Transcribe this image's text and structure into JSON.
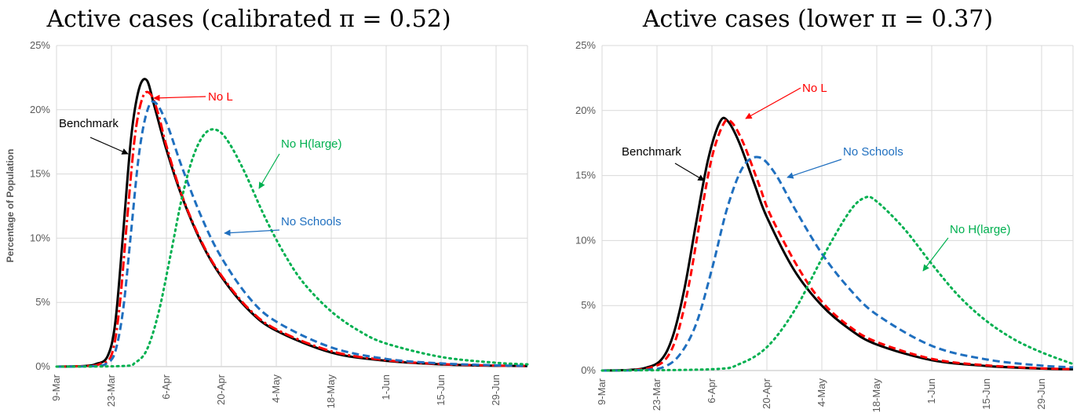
{
  "chart_data": [
    {
      "type": "line",
      "title": "Active cases (calibrated π = 0.52)",
      "xlabel": "",
      "ylabel": "Percentage of Population",
      "ylim": [
        0,
        25
      ],
      "y_ticks": [
        "0%",
        "5%",
        "10%",
        "15%",
        "20%",
        "25%"
      ],
      "x_ticks": [
        "9-Mar",
        "23-Mar",
        "6-Apr",
        "20-Apr",
        "4-May",
        "18-May",
        "1-Jun",
        "15-Jun",
        "29-Jun"
      ],
      "x_range": [
        "9-Mar",
        "7-Jul"
      ],
      "grid": true,
      "series": [
        {
          "name": "Benchmark",
          "color": "#000000",
          "style": "solid",
          "points": [
            [
              "9-Mar",
              0
            ],
            [
              "16-Mar",
              0.05
            ],
            [
              "19-Mar",
              0.2
            ],
            [
              "22-Mar",
              0.8
            ],
            [
              "24-Mar",
              3.5
            ],
            [
              "26-Mar",
              10.5
            ],
            [
              "28-Mar",
              17.8
            ],
            [
              "30-Mar",
              21.6
            ],
            [
              "1-Apr",
              22.3
            ],
            [
              "3-Apr",
              20.2
            ],
            [
              "6-Apr",
              16.9
            ],
            [
              "10-Apr",
              13.2
            ],
            [
              "15-Apr",
              9.6
            ],
            [
              "20-Apr",
              7.0
            ],
            [
              "27-Apr",
              4.4
            ],
            [
              "4-May",
              2.8
            ],
            [
              "18-May",
              1.1
            ],
            [
              "1-Jun",
              0.45
            ],
            [
              "15-Jun",
              0.18
            ],
            [
              "29-Jun",
              0.07
            ],
            [
              "7-Jul",
              0.04
            ]
          ]
        },
        {
          "name": "No L",
          "color": "#ff0000",
          "style": "dashdot",
          "points": [
            [
              "9-Mar",
              0
            ],
            [
              "17-Mar",
              0.05
            ],
            [
              "20-Mar",
              0.2
            ],
            [
              "23-Mar",
              0.9
            ],
            [
              "25-Mar",
              4.5
            ],
            [
              "27-Mar",
              11.5
            ],
            [
              "29-Mar",
              18.0
            ],
            [
              "31-Mar",
              21.0
            ],
            [
              "2-Apr",
              21.2
            ],
            [
              "4-Apr",
              19.6
            ],
            [
              "6-Apr",
              17.2
            ],
            [
              "10-Apr",
              13.3
            ],
            [
              "15-Apr",
              9.7
            ],
            [
              "20-Apr",
              7.1
            ],
            [
              "27-Apr",
              4.5
            ],
            [
              "4-May",
              2.9
            ],
            [
              "18-May",
              1.2
            ],
            [
              "1-Jun",
              0.5
            ],
            [
              "15-Jun",
              0.2
            ],
            [
              "29-Jun",
              0.08
            ],
            [
              "7-Jul",
              0.05
            ]
          ]
        },
        {
          "name": "No Schools",
          "color": "#1f6fbf",
          "style": "dashed",
          "points": [
            [
              "9-Mar",
              0
            ],
            [
              "19-Mar",
              0.05
            ],
            [
              "22-Mar",
              0.3
            ],
            [
              "24-Mar",
              1.2
            ],
            [
              "26-Mar",
              4.5
            ],
            [
              "28-Mar",
              10.5
            ],
            [
              "30-Mar",
              16.5
            ],
            [
              "1-Apr",
              19.8
            ],
            [
              "3-Apr",
              20.6
            ],
            [
              "6-Apr",
              19.0
            ],
            [
              "10-Apr",
              15.5
            ],
            [
              "15-Apr",
              11.6
            ],
            [
              "20-Apr",
              8.5
            ],
            [
              "27-Apr",
              5.4
            ],
            [
              "4-May",
              3.5
            ],
            [
              "18-May",
              1.5
            ],
            [
              "1-Jun",
              0.6
            ],
            [
              "15-Jun",
              0.25
            ],
            [
              "29-Jun",
              0.1
            ],
            [
              "7-Jul",
              0.06
            ]
          ]
        },
        {
          "name": "No H(large)",
          "color": "#00b050",
          "style": "dotted",
          "points": [
            [
              "9-Mar",
              0
            ],
            [
              "26-Mar",
              0.05
            ],
            [
              "29-Mar",
              0.3
            ],
            [
              "1-Apr",
              1.3
            ],
            [
              "4-Apr",
              4.2
            ],
            [
              "7-Apr",
              8.6
            ],
            [
              "10-Apr",
              13.2
            ],
            [
              "13-Apr",
              16.5
            ],
            [
              "16-Apr",
              18.2
            ],
            [
              "19-Apr",
              18.4
            ],
            [
              "22-Apr",
              17.4
            ],
            [
              "26-Apr",
              15.1
            ],
            [
              "1-May",
              11.7
            ],
            [
              "6-May",
              8.8
            ],
            [
              "11-May",
              6.5
            ],
            [
              "18-May",
              4.3
            ],
            [
              "25-May",
              2.8
            ],
            [
              "1-Jun",
              1.8
            ],
            [
              "15-Jun",
              0.75
            ],
            [
              "29-Jun",
              0.3
            ],
            [
              "7-Jul",
              0.18
            ]
          ]
        }
      ],
      "annotations": [
        {
          "text": "Benchmark",
          "color": "#000000"
        },
        {
          "text": "No L",
          "color": "#ff0000"
        },
        {
          "text": "No H(large)",
          "color": "#00b050"
        },
        {
          "text": "No Schools",
          "color": "#1f6fbf"
        }
      ]
    },
    {
      "type": "line",
      "title": "Active cases (lower π = 0.37)",
      "xlabel": "",
      "ylabel": "",
      "ylim": [
        0,
        25
      ],
      "y_ticks": [
        "0%",
        "5%",
        "10%",
        "15%",
        "20%",
        "25%"
      ],
      "x_ticks": [
        "9-Mar",
        "23-Mar",
        "6-Apr",
        "20-Apr",
        "4-May",
        "18-May",
        "1-Jun",
        "15-Jun",
        "29-Jun"
      ],
      "x_range": [
        "9-Mar",
        "7-Jul"
      ],
      "grid": true,
      "series": [
        {
          "name": "Benchmark",
          "color": "#000000",
          "style": "solid",
          "points": [
            [
              "9-Mar",
              0
            ],
            [
              "16-Mar",
              0.05
            ],
            [
              "20-Mar",
              0.2
            ],
            [
              "24-Mar",
              0.8
            ],
            [
              "27-Mar",
              2.6
            ],
            [
              "30-Mar",
              6.3
            ],
            [
              "2-Apr",
              11.4
            ],
            [
              "5-Apr",
              16.2
            ],
            [
              "8-Apr",
              19.1
            ],
            [
              "10-Apr",
              19.2
            ],
            [
              "13-Apr",
              17.5
            ],
            [
              "17-Apr",
              14.2
            ],
            [
              "20-Apr",
              11.8
            ],
            [
              "27-Apr",
              7.7
            ],
            [
              "4-May",
              5.0
            ],
            [
              "11-May",
              3.2
            ],
            [
              "18-May",
              2.0
            ],
            [
              "1-Jun",
              0.8
            ],
            [
              "15-Jun",
              0.35
            ],
            [
              "29-Jun",
              0.15
            ],
            [
              "7-Jul",
              0.1
            ]
          ]
        },
        {
          "name": "No L",
          "color": "#ff0000",
          "style": "dashed",
          "points": [
            [
              "9-Mar",
              0
            ],
            [
              "17-Mar",
              0.05
            ],
            [
              "21-Mar",
              0.2
            ],
            [
              "25-Mar",
              0.8
            ],
            [
              "28-Mar",
              2.6
            ],
            [
              "31-Mar",
              6.4
            ],
            [
              "3-Apr",
              11.6
            ],
            [
              "6-Apr",
              16.4
            ],
            [
              "9-Apr",
              19.0
            ],
            [
              "11-Apr",
              19.1
            ],
            [
              "14-Apr",
              17.5
            ],
            [
              "18-Apr",
              14.3
            ],
            [
              "21-Apr",
              11.9
            ],
            [
              "28-Apr",
              7.9
            ],
            [
              "4-May",
              5.3
            ],
            [
              "11-May",
              3.4
            ],
            [
              "18-May",
              2.2
            ],
            [
              "1-Jun",
              0.9
            ],
            [
              "15-Jun",
              0.4
            ],
            [
              "29-Jun",
              0.17
            ],
            [
              "7-Jul",
              0.11
            ]
          ]
        },
        {
          "name": "No Schools",
          "color": "#1f6fbf",
          "style": "dashed",
          "points": [
            [
              "9-Mar",
              0
            ],
            [
              "20-Mar",
              0.05
            ],
            [
              "25-Mar",
              0.3
            ],
            [
              "29-Mar",
              1.3
            ],
            [
              "2-Apr",
              3.6
            ],
            [
              "6-Apr",
              7.8
            ],
            [
              "10-Apr",
              12.6
            ],
            [
              "14-Apr",
              15.7
            ],
            [
              "18-Apr",
              16.4
            ],
            [
              "22-Apr",
              15.2
            ],
            [
              "27-Apr",
              12.5
            ],
            [
              "4-May",
              9.0
            ],
            [
              "11-May",
              6.3
            ],
            [
              "18-May",
              4.3
            ],
            [
              "1-Jun",
              1.9
            ],
            [
              "15-Jun",
              0.85
            ],
            [
              "29-Jun",
              0.38
            ],
            [
              "7-Jul",
              0.25
            ]
          ]
        },
        {
          "name": "No H(large)",
          "color": "#00b050",
          "style": "dotted",
          "points": [
            [
              "9-Mar",
              0
            ],
            [
              "6-Apr",
              0.1
            ],
            [
              "13-Apr",
              0.5
            ],
            [
              "20-Apr",
              1.8
            ],
            [
              "27-Apr",
              4.6
            ],
            [
              "4-May",
              8.6
            ],
            [
              "11-May",
              12.2
            ],
            [
              "15-May",
              13.3
            ],
            [
              "18-May",
              13.0
            ],
            [
              "25-May",
              10.9
            ],
            [
              "1-Jun",
              8.2
            ],
            [
              "8-Jun",
              5.7
            ],
            [
              "15-Jun",
              3.8
            ],
            [
              "22-Jun",
              2.4
            ],
            [
              "29-Jun",
              1.4
            ],
            [
              "7-Jul",
              0.5
            ]
          ]
        }
      ],
      "annotations": [
        {
          "text": "Benchmark",
          "color": "#000000"
        },
        {
          "text": "No L",
          "color": "#ff0000"
        },
        {
          "text": "No Schools",
          "color": "#1f6fbf"
        },
        {
          "text": "No H(large)",
          "color": "#00b050"
        }
      ]
    }
  ]
}
